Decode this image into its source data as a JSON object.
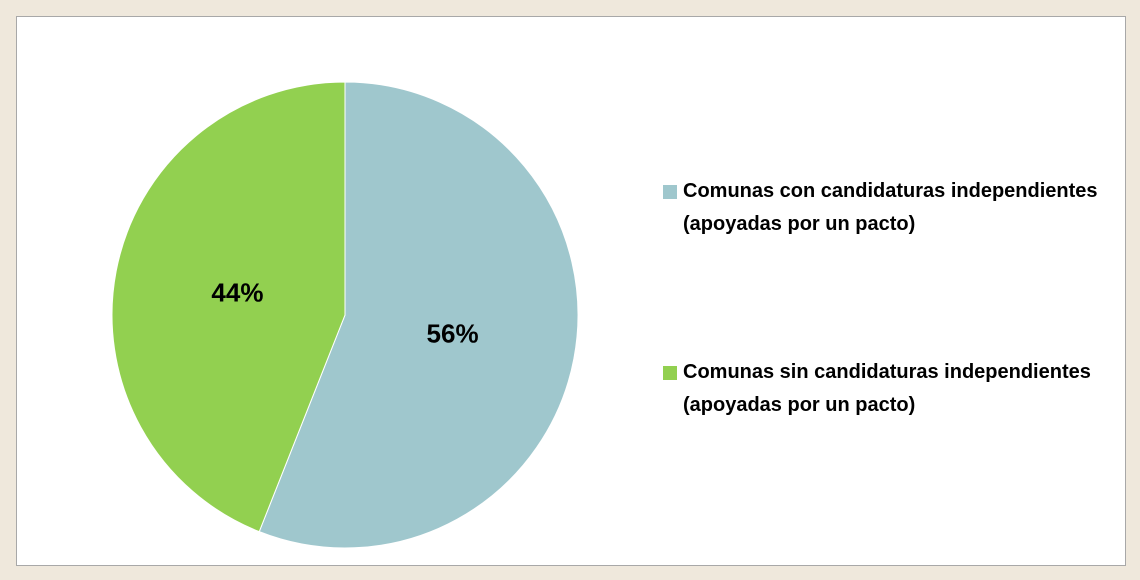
{
  "chart_data": {
    "type": "pie",
    "categories": [
      "Comunas con candidaturas independientes (apoyadas por un pacto)",
      "Comunas sin candidaturas independientes (apoyadas por un pacto)"
    ],
    "values": [
      56,
      44
    ],
    "value_labels": [
      "56%",
      "44%"
    ],
    "colors": [
      "#9fc7cd",
      "#92d050"
    ]
  }
}
